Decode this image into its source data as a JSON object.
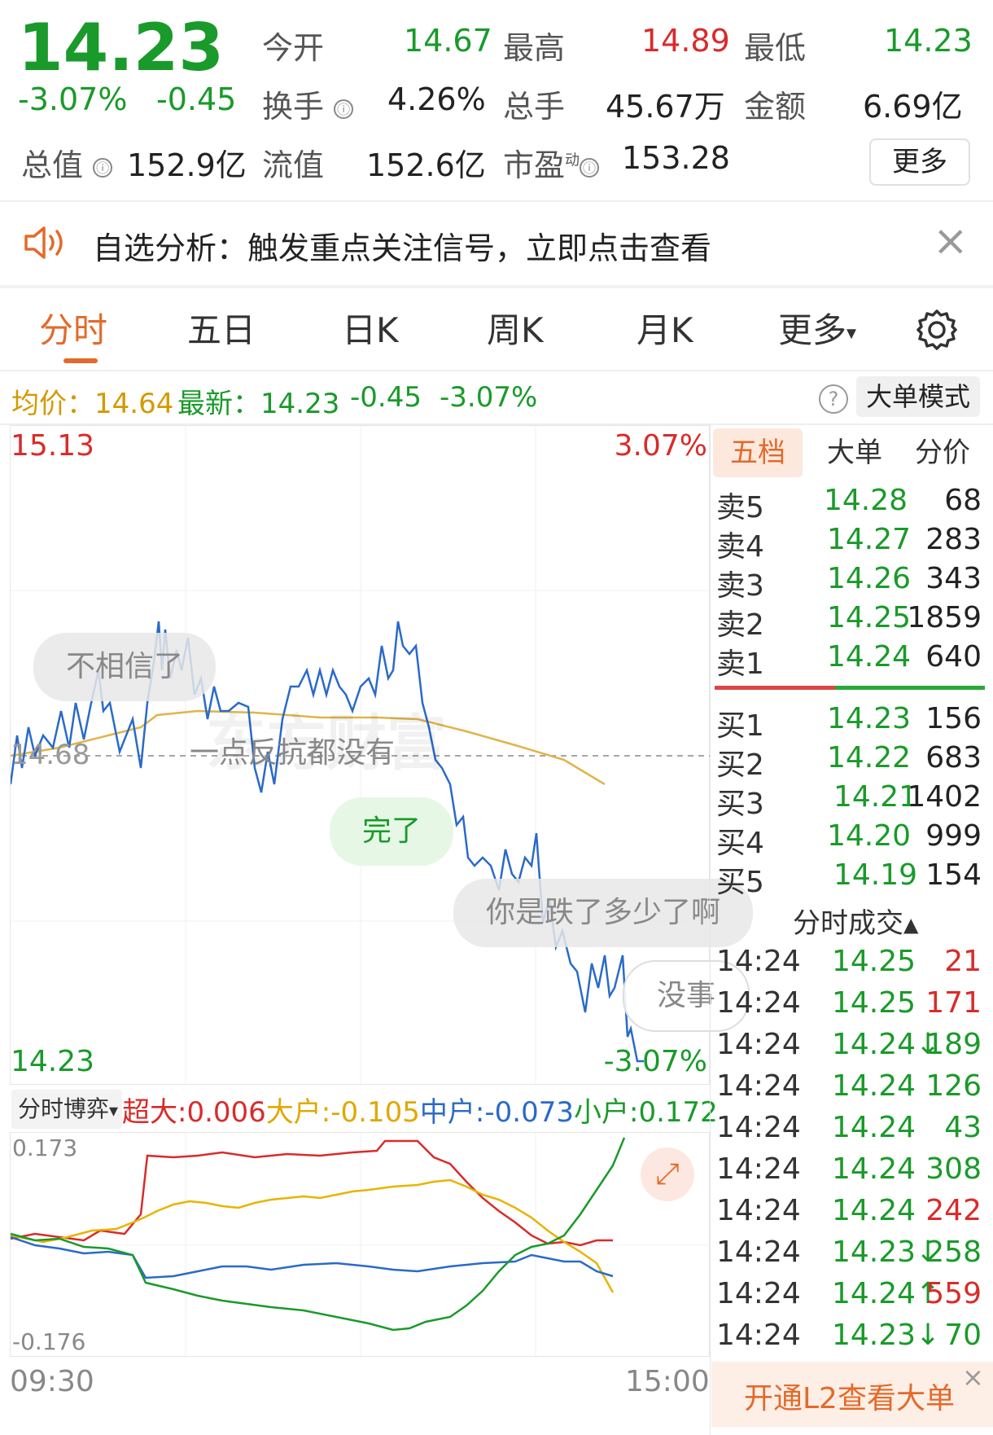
{
  "quote": {
    "price": "14.23",
    "pct": "-3.07%",
    "change": "-0.45",
    "open_label": "今开",
    "open": "14.67",
    "high_label": "最高",
    "high": "14.89",
    "low_label": "最低",
    "low": "14.23",
    "turnover_label": "换手",
    "turnover": "4.26%",
    "volume_label": "总手",
    "volume": "45.67万",
    "amount_label": "金额",
    "amount": "6.69亿",
    "mktcap_label": "总值",
    "mktcap": "152.9亿",
    "float_label": "流值",
    "float": "152.6亿",
    "pe_label": "市盈",
    "pe_sup": "动",
    "pe": "153.28",
    "more_button": "更多",
    "info_icon": "ⓘ"
  },
  "banner": {
    "text": "自选分析：触发重点关注信号，立即点击查看",
    "icon": "speaker-icon",
    "close_icon": "×"
  },
  "tabs": [
    "分时",
    "五日",
    "日K",
    "周K",
    "月K",
    "更多"
  ],
  "tabs_more_arrow": "▾",
  "info_bar": {
    "avg_label": "均价：",
    "avg": "14.64",
    "latest_label": "最新：",
    "latest": "14.23",
    "change": "-0.45",
    "pct": "-3.07%",
    "help": "?",
    "big_order_mode": "大单模式"
  },
  "intraday_chart": {
    "top_price": "15.13",
    "top_pct": "3.07%",
    "mid_price": "14.68",
    "bottom_price": "14.23",
    "bottom_pct": "-3.07%",
    "watermark": "东方财富",
    "time_start": "09:30",
    "time_end": "15:00"
  },
  "comments": [
    {
      "text": "不相信了",
      "color": "gray"
    },
    {
      "text": "一点反抗都没有",
      "color": "none"
    },
    {
      "text": "完了",
      "color": "green"
    },
    {
      "text": "你是跌了多少了啊",
      "color": "gray"
    },
    {
      "text": "没事",
      "color": "white"
    }
  ],
  "flow": {
    "dropdown": "分时博弈",
    "dropdown_arrow": "▾",
    "super_label": "超大:",
    "super": "0.006",
    "large_label": "大户:",
    "large": "-0.105",
    "medium_label": "中户:",
    "medium": "-0.073",
    "small_label": "小户:",
    "small": "0.172",
    "ymax": "0.173",
    "ymin": "-0.176",
    "expand_icon": "⤢",
    "colors": {
      "super": "#d92b2b",
      "large": "#e8b400",
      "medium": "#2a6ac9",
      "small": "#1a9a2a"
    }
  },
  "orderbook": {
    "tabs": [
      "五档",
      "大单",
      "分价"
    ],
    "asks": [
      {
        "label": "卖5",
        "price": "14.28",
        "vol": "68"
      },
      {
        "label": "卖4",
        "price": "14.27",
        "vol": "283"
      },
      {
        "label": "卖3",
        "price": "14.26",
        "vol": "343"
      },
      {
        "label": "卖2",
        "price": "14.25",
        "vol": "1859"
      },
      {
        "label": "卖1",
        "price": "14.24",
        "vol": "640"
      }
    ],
    "bids": [
      {
        "label": "买1",
        "price": "14.23",
        "vol": "156"
      },
      {
        "label": "买2",
        "price": "14.22",
        "vol": "683"
      },
      {
        "label": "买3",
        "price": "14.21",
        "vol": "1402"
      },
      {
        "label": "买4",
        "price": "14.20",
        "vol": "999"
      },
      {
        "label": "买5",
        "price": "14.19",
        "vol": "154"
      }
    ],
    "trades_title": "分时成交",
    "trades_arrow": "▲",
    "trades": [
      {
        "time": "14:24",
        "price": "14.25",
        "vol": "21",
        "side": "buy"
      },
      {
        "time": "14:24",
        "price": "14.25",
        "vol": "171",
        "side": "buy"
      },
      {
        "time": "14:24",
        "price": "14.24↓",
        "vol": "189",
        "side": "sell"
      },
      {
        "time": "14:24",
        "price": "14.24",
        "vol": "126",
        "side": "sell"
      },
      {
        "time": "14:24",
        "price": "14.24",
        "vol": "43",
        "side": "sell"
      },
      {
        "time": "14:24",
        "price": "14.24",
        "vol": "308",
        "side": "sell"
      },
      {
        "time": "14:24",
        "price": "14.24",
        "vol": "242",
        "side": "buy"
      },
      {
        "time": "14:24",
        "price": "14.23↓",
        "vol": "258",
        "side": "sell"
      },
      {
        "time": "14:24",
        "price": "14.24↑",
        "vol": "559",
        "side": "buy"
      },
      {
        "time": "14:24",
        "price": "14.23↓",
        "vol": "70",
        "side": "sell"
      }
    ],
    "l2_button": "开通L2查看大单",
    "l2_close": "×"
  }
}
